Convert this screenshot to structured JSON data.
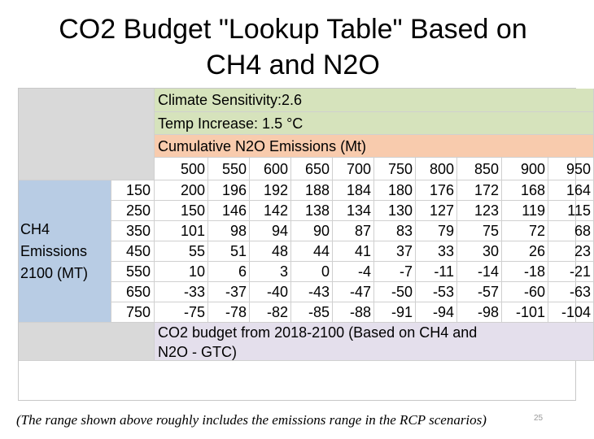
{
  "title_line1": "CO2 Budget \"Lookup Table\" Based on",
  "title_line2": "CH4 and N2O",
  "climate_sensitivity": "Climate Sensitivity:2.6",
  "temp_increase": "Temp Increase: 1.5 °C",
  "n2o_header": "Cumulative N2O Emissions (Mt)",
  "ch4_label": [
    "CH4",
    "Emissions",
    "2100 (MT)"
  ],
  "columns": [
    "500",
    "550",
    "600",
    "650",
    "700",
    "750",
    "800",
    "850",
    "900",
    "950"
  ],
  "rows": [
    {
      "label": "150",
      "values": [
        "200",
        "196",
        "192",
        "188",
        "184",
        "180",
        "176",
        "172",
        "168",
        "164"
      ]
    },
    {
      "label": "250",
      "values": [
        "150",
        "146",
        "142",
        "138",
        "134",
        "130",
        "127",
        "123",
        "119",
        "115"
      ]
    },
    {
      "label": "350",
      "values": [
        "101",
        "98",
        "94",
        "90",
        "87",
        "83",
        "79",
        "75",
        "72",
        "68"
      ]
    },
    {
      "label": "450",
      "values": [
        "55",
        "51",
        "48",
        "44",
        "41",
        "37",
        "33",
        "30",
        "26",
        "23"
      ]
    },
    {
      "label": "550",
      "values": [
        "10",
        "6",
        "3",
        "0",
        "-4",
        "-7",
        "-11",
        "-14",
        "-18",
        "-21"
      ]
    },
    {
      "label": "650",
      "values": [
        "-33",
        "-37",
        "-40",
        "-43",
        "-47",
        "-50",
        "-53",
        "-57",
        "-60",
        "-63"
      ]
    },
    {
      "label": "750",
      "values": [
        "-75",
        "-78",
        "-82",
        "-85",
        "-88",
        "-91",
        "-94",
        "-98",
        "-101",
        "-104"
      ]
    }
  ],
  "footer_line1": "CO2 budget from 2018-2100 (Based on CH4 and",
  "footer_line2": "N2O - GTC)",
  "note": "(The range shown above roughly includes the emissions range in the RCP scenarios)",
  "page_number": "25"
}
